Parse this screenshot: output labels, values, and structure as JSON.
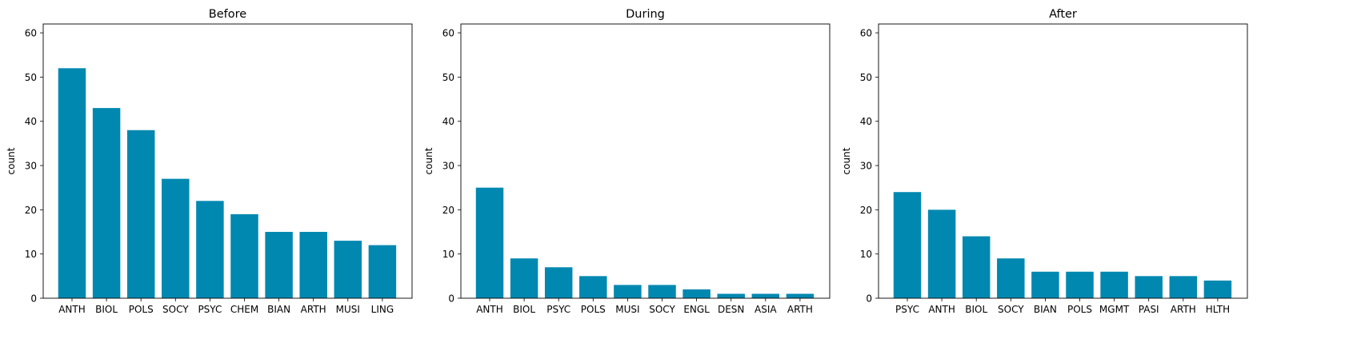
{
  "chart_data": [
    {
      "type": "bar",
      "title": "Before",
      "xlabel": "",
      "ylabel": "count",
      "ylim": [
        0,
        62
      ],
      "yticks": [
        0,
        10,
        20,
        30,
        40,
        50,
        60
      ],
      "categories": [
        "ANTH",
        "BIOL",
        "POLS",
        "SOCY",
        "PSYC",
        "CHEM",
        "BIAN",
        "ARTH",
        "MUSI",
        "LING"
      ],
      "values": [
        52,
        43,
        38,
        27,
        22,
        19,
        15,
        15,
        13,
        12
      ],
      "bar_color": "#0088b0",
      "grid": false,
      "legend": "none"
    },
    {
      "type": "bar",
      "title": "During",
      "xlabel": "",
      "ylabel": "count",
      "ylim": [
        0,
        62
      ],
      "yticks": [
        0,
        10,
        20,
        30,
        40,
        50,
        60
      ],
      "categories": [
        "ANTH",
        "BIOL",
        "PSYC",
        "POLS",
        "MUSI",
        "SOCY",
        "ENGL",
        "DESN",
        "ASIA",
        "ARTH"
      ],
      "values": [
        25,
        9,
        7,
        5,
        3,
        3,
        2,
        1,
        1,
        1
      ],
      "bar_color": "#0088b0",
      "grid": false,
      "legend": "none"
    },
    {
      "type": "bar",
      "title": "After",
      "xlabel": "",
      "ylabel": "count",
      "ylim": [
        0,
        62
      ],
      "yticks": [
        0,
        10,
        20,
        30,
        40,
        50,
        60
      ],
      "categories": [
        "PSYC",
        "ANTH",
        "BIOL",
        "SOCY",
        "BIAN",
        "POLS",
        "MGMT",
        "PASI",
        "ARTH",
        "HLTH"
      ],
      "values": [
        24,
        20,
        14,
        9,
        6,
        6,
        6,
        5,
        5,
        4
      ],
      "bar_color": "#0088b0",
      "grid": false,
      "legend": "none"
    }
  ]
}
